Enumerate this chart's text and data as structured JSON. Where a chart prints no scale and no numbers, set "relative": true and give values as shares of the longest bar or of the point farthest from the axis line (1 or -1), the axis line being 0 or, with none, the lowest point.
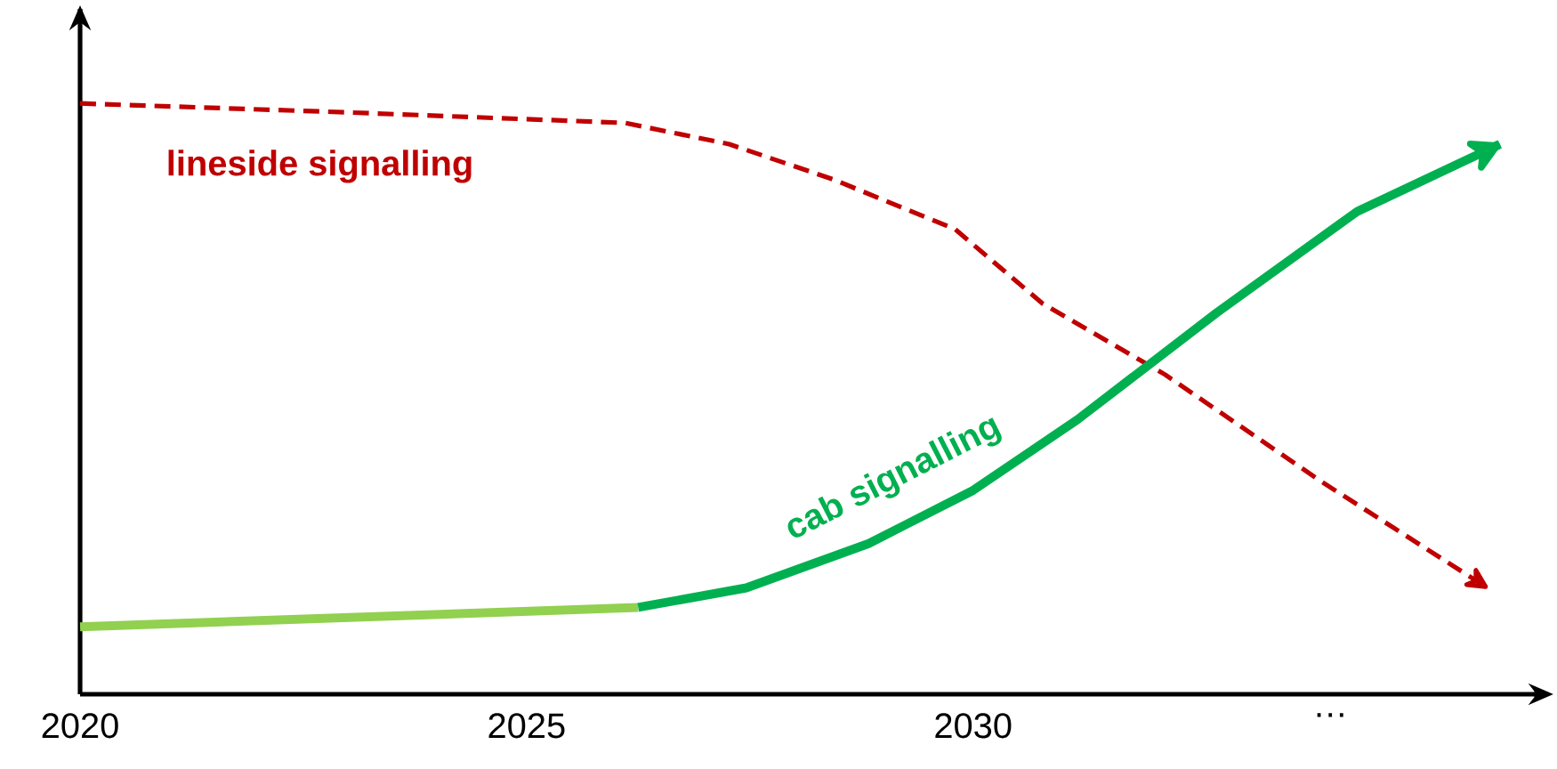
{
  "chart_data": {
    "type": "line",
    "relative": true,
    "marker": "none",
    "legend": false,
    "grid": false,
    "tick_labels": "x",
    "xlim": [
      2020,
      2036.3
    ],
    "xticks": [
      2020,
      2025,
      2030,
      {
        "value": 2034,
        "label": "…"
      }
    ],
    "series": [
      {
        "name": "lineside signalling",
        "color": "#c00000",
        "line_style": "dashed",
        "x": [
          2020,
          2022.97,
          2026.1,
          2027.27,
          2028.44,
          2029.8,
          2030.78,
          2032.15,
          2033.9,
          2035.76
        ],
        "values": [
          1.0,
          0.985,
          0.967,
          0.931,
          0.871,
          0.787,
          0.661,
          0.541,
          0.36,
          0.18
        ]
      },
      {
        "color": "#92d050",
        "line_style": "solid",
        "x": [
          2020,
          2026.25
        ],
        "values": [
          0.114,
          0.147
        ]
      },
      {
        "name": "cab signalling",
        "color": "#00b050",
        "line_style": "solid",
        "x": [
          2026.25,
          2027.46,
          2028.83,
          2030,
          2031.17,
          2032.73,
          2034.3,
          2035.9
        ],
        "values": [
          0.147,
          0.18,
          0.255,
          0.345,
          0.465,
          0.646,
          0.817,
          0.931
        ]
      }
    ]
  }
}
